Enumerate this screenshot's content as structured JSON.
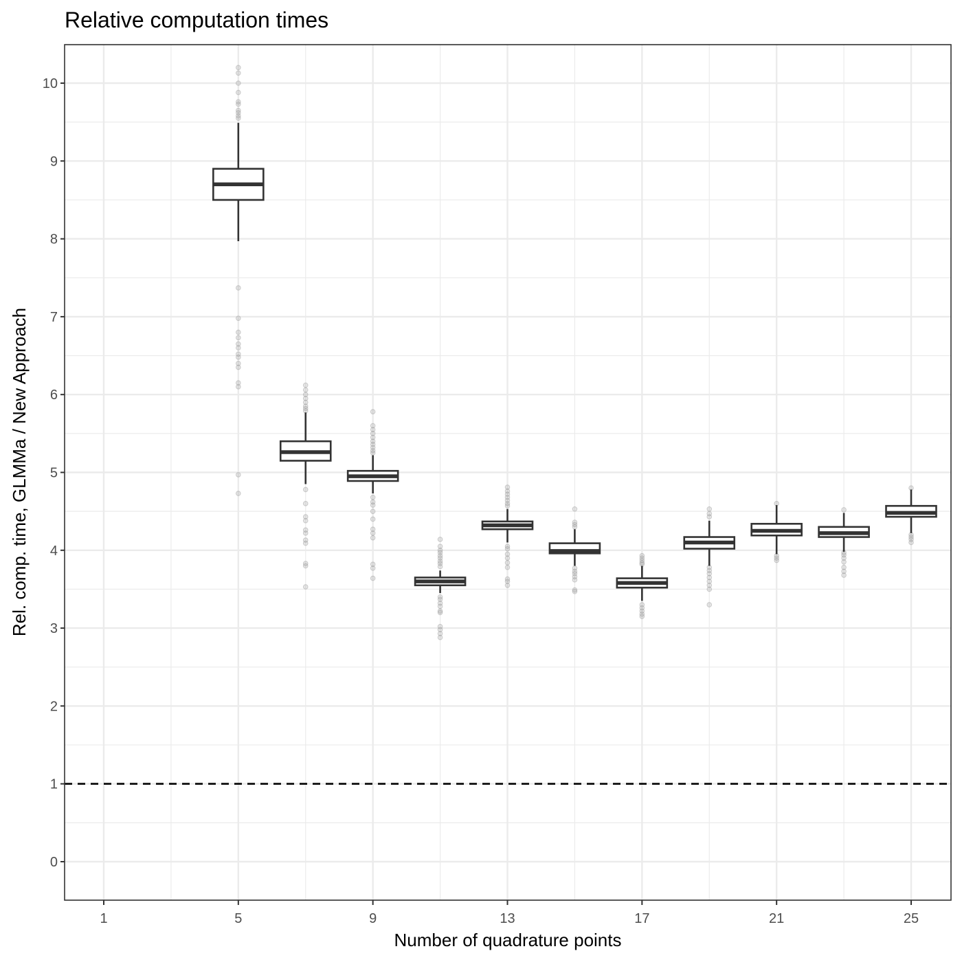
{
  "chart_data": {
    "type": "boxplot",
    "title": "Relative computation times",
    "xlabel": "Number of quadrature points",
    "ylabel": "Rel. comp. time, GLMMa / New Approach",
    "xlim": [
      0,
      26.3
    ],
    "ylim": [
      -0.5,
      10.5
    ],
    "x_ticks": [
      1,
      5,
      9,
      13,
      17,
      21,
      25
    ],
    "x_tick_labels": [
      "1",
      "5",
      "9",
      "13",
      "17",
      "21",
      "25"
    ],
    "y_ticks": [
      0,
      1,
      2,
      3,
      4,
      5,
      6,
      7,
      8,
      9,
      10
    ],
    "y_tick_labels": [
      "0",
      "1",
      "2",
      "3",
      "4",
      "5",
      "6",
      "7",
      "8",
      "9",
      "10"
    ],
    "grid": true,
    "reference_line": {
      "y": 1,
      "style": "dashed"
    },
    "colors": {
      "box": "#333333",
      "outlier": "#9a9a9a",
      "grid": "#ebebeb",
      "panel_border": "#333333",
      "refline": "#000000"
    },
    "boxes": [
      {
        "x": 5,
        "whisker_low": 7.97,
        "q1": 8.5,
        "median": 8.7,
        "q3": 8.9,
        "whisker_high": 9.49,
        "outliers": [
          10.2,
          10.13,
          10.0,
          9.88,
          9.76,
          9.73,
          9.65,
          9.62,
          9.58,
          9.55,
          7.37,
          6.98,
          6.8,
          6.73,
          6.65,
          6.6,
          6.52,
          6.48,
          6.4,
          6.35,
          6.15,
          6.1,
          4.97,
          4.73
        ]
      },
      {
        "x": 7,
        "whisker_low": 4.85,
        "q1": 5.15,
        "median": 5.26,
        "q3": 5.4,
        "whisker_high": 5.77,
        "outliers": [
          6.12,
          6.06,
          6.0,
          5.95,
          5.9,
          5.85,
          5.82,
          5.79,
          4.78,
          4.6,
          4.43,
          4.38,
          4.26,
          4.22,
          4.13,
          4.09,
          3.83,
          3.8,
          3.53
        ]
      },
      {
        "x": 9,
        "whisker_low": 4.73,
        "q1": 4.89,
        "median": 4.95,
        "q3": 5.02,
        "whisker_high": 5.22,
        "outliers": [
          5.78,
          5.6,
          5.55,
          5.5,
          5.45,
          5.4,
          5.36,
          5.32,
          5.28,
          5.25,
          4.68,
          4.62,
          4.58,
          4.5,
          4.4,
          4.27,
          4.22,
          4.16,
          3.82,
          3.77,
          3.64
        ]
      },
      {
        "x": 11,
        "whisker_low": 3.45,
        "q1": 3.55,
        "median": 3.6,
        "q3": 3.65,
        "whisker_high": 3.74,
        "outliers": [
          4.14,
          4.05,
          4.0,
          3.97,
          3.93,
          3.9,
          3.86,
          3.83,
          3.79,
          3.4,
          3.37,
          3.32,
          3.28,
          3.22,
          3.2,
          3.02,
          2.98,
          2.93,
          2.88
        ]
      },
      {
        "x": 13,
        "whisker_low": 4.1,
        "q1": 4.27,
        "median": 4.32,
        "q3": 4.37,
        "whisker_high": 4.53,
        "outliers": [
          4.81,
          4.76,
          4.72,
          4.68,
          4.64,
          4.6,
          4.57,
          4.05,
          4.02,
          3.95,
          3.9,
          3.84,
          3.78,
          3.63,
          3.6,
          3.55
        ]
      },
      {
        "x": 15,
        "whisker_low": 3.8,
        "q1": 3.96,
        "median": 3.99,
        "q3": 4.09,
        "whisker_high": 4.27,
        "outliers": [
          4.53,
          4.36,
          4.33,
          4.3,
          3.77,
          3.73,
          3.7,
          3.66,
          3.62,
          3.49,
          3.47
        ]
      },
      {
        "x": 17,
        "whisker_low": 3.35,
        "q1": 3.52,
        "median": 3.58,
        "q3": 3.64,
        "whisker_high": 3.8,
        "outliers": [
          3.93,
          3.9,
          3.87,
          3.84,
          3.82,
          3.3,
          3.26,
          3.22,
          3.18,
          3.15
        ]
      },
      {
        "x": 19,
        "whisker_low": 3.8,
        "q1": 4.02,
        "median": 4.1,
        "q3": 4.17,
        "whisker_high": 4.38,
        "outliers": [
          4.53,
          4.47,
          4.43,
          3.78,
          3.74,
          3.7,
          3.65,
          3.6,
          3.55,
          3.5,
          3.3
        ]
      },
      {
        "x": 21,
        "whisker_low": 3.95,
        "q1": 4.19,
        "median": 4.25,
        "q3": 4.34,
        "whisker_high": 4.58,
        "outliers": [
          4.6,
          3.93,
          3.9,
          3.87
        ]
      },
      {
        "x": 23,
        "whisker_low": 3.98,
        "q1": 4.17,
        "median": 4.22,
        "q3": 4.3,
        "whisker_high": 4.48,
        "outliers": [
          4.52,
          3.97,
          3.94,
          3.9,
          3.85,
          3.78,
          3.73,
          3.68
        ]
      },
      {
        "x": 25,
        "whisker_low": 4.22,
        "q1": 4.43,
        "median": 4.48,
        "q3": 4.57,
        "whisker_high": 4.78,
        "outliers": [
          4.8,
          4.2,
          4.17,
          4.14,
          4.1
        ]
      }
    ]
  }
}
